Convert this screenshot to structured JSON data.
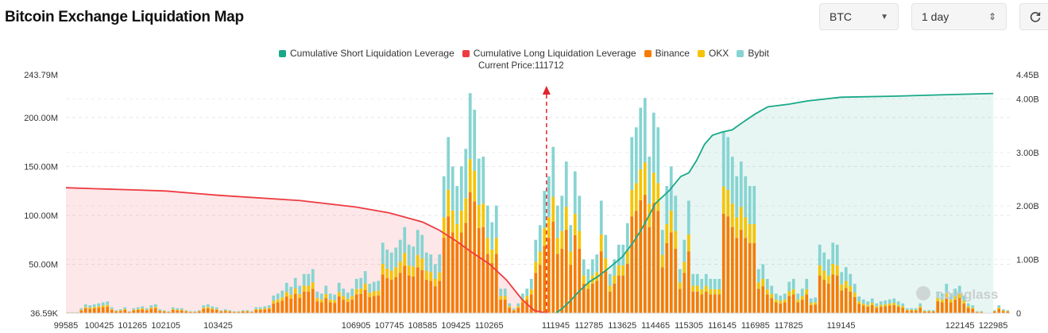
{
  "title": "Bitcoin Exchange Liquidation Map",
  "controls": {
    "symbol": "BTC",
    "range": "1 day"
  },
  "colors": {
    "short": "#19a888",
    "long": "#ee3b42",
    "binance": "#f57c00",
    "okx": "#f5c400",
    "bybit": "#86d4d2"
  },
  "chart_data": {
    "type": "bar",
    "title": "Bitcoin Exchange Liquidation Map",
    "current_price_label": "Current Price:111712",
    "current_price": 111712,
    "legend": [
      "Cumulative Short Liquidation Leverage",
      "Cumulative Long Liquidation Leverage",
      "Binance",
      "OKX",
      "Bybit"
    ],
    "y_left_ticks": [
      "243.79M",
      "200.00M",
      "150.00M",
      "100.00M",
      "50.00M",
      "36.59K"
    ],
    "y_right_ticks": [
      "4.45B",
      "4.00B",
      "3.00B",
      "2.00B",
      "1.00B",
      "0"
    ],
    "x_ticks": [
      "99585",
      "100425",
      "101265",
      "102105",
      "103425",
      "106905",
      "107745",
      "108585",
      "109425",
      "110265",
      "111945",
      "112785",
      "113625",
      "114465",
      "115305",
      "116145",
      "116985",
      "117825",
      "119145",
      "122145",
      "122985"
    ],
    "ylim_left_M": [
      0,
      243.79
    ],
    "ylim_right_B": [
      0,
      4.45
    ],
    "bars_total_M": [
      1,
      1,
      1,
      5,
      9,
      8,
      9,
      10,
      11,
      12,
      6,
      3,
      4,
      6,
      2,
      5,
      6,
      7,
      5,
      8,
      9,
      4,
      3,
      2,
      6,
      5,
      5,
      3,
      2,
      2,
      3,
      8,
      9,
      7,
      6,
      3,
      4,
      3,
      2,
      2,
      3,
      3,
      2,
      6,
      6,
      7,
      8,
      18,
      20,
      23,
      31,
      27,
      36,
      28,
      40,
      40,
      45,
      22,
      20,
      28,
      20,
      19,
      31,
      25,
      21,
      25,
      35,
      36,
      43,
      30,
      32,
      33,
      72,
      65,
      62,
      67,
      75,
      88,
      70,
      68,
      85,
      80,
      62,
      60,
      50,
      60,
      140,
      180,
      150,
      130,
      150,
      168,
      225,
      208,
      158,
      160,
      110,
      93,
      110,
      25,
      25,
      10,
      5,
      10,
      20,
      25,
      35,
      75,
      90,
      125,
      140,
      170,
      110,
      120,
      155,
      90,
      145,
      120,
      55,
      45,
      55,
      60,
      115,
      80,
      40,
      55,
      70,
      70,
      92,
      180,
      190,
      210,
      220,
      160,
      205,
      190,
      85,
      130,
      150,
      120,
      45,
      75,
      115,
      40,
      40,
      35,
      40,
      35,
      35,
      35,
      185,
      180,
      160,
      140,
      155,
      140,
      130,
      130,
      45,
      50,
      35,
      28,
      20,
      18,
      20,
      32,
      35,
      20,
      25,
      35,
      15,
      16,
      70,
      62,
      55,
      72,
      70,
      42,
      47,
      40,
      30,
      17,
      14,
      12,
      15,
      10,
      12,
      13,
      14,
      15,
      12,
      10,
      5,
      5,
      5,
      10,
      3,
      3,
      3,
      22,
      20,
      30,
      20,
      25,
      28,
      18,
      10,
      8,
      2,
      2,
      0,
      0,
      3,
      8,
      4,
      3
    ],
    "short_cumulative_B": [
      [
        111945,
        0
      ],
      [
        112100,
        0.08
      ],
      [
        112300,
        0.22
      ],
      [
        112550,
        0.42
      ],
      [
        112785,
        0.58
      ],
      [
        113000,
        0.68
      ],
      [
        113300,
        0.85
      ],
      [
        113625,
        1.05
      ],
      [
        113900,
        1.32
      ],
      [
        114100,
        1.55
      ],
      [
        114465,
        2.05
      ],
      [
        114800,
        2.28
      ],
      [
        115100,
        2.55
      ],
      [
        115305,
        2.62
      ],
      [
        115500,
        2.85
      ],
      [
        115700,
        3.15
      ],
      [
        115900,
        3.32
      ],
      [
        116145,
        3.38
      ],
      [
        116400,
        3.42
      ],
      [
        116700,
        3.58
      ],
      [
        116985,
        3.72
      ],
      [
        117300,
        3.85
      ],
      [
        117825,
        3.9
      ],
      [
        118300,
        3.96
      ],
      [
        119145,
        4.03
      ],
      [
        120500,
        4.05
      ],
      [
        122000,
        4.08
      ],
      [
        122985,
        4.1
      ]
    ],
    "long_cumulative_B": [
      [
        99585,
        2.34
      ],
      [
        100425,
        2.32
      ],
      [
        101265,
        2.3
      ],
      [
        102105,
        2.28
      ],
      [
        103425,
        2.2
      ],
      [
        105500,
        2.1
      ],
      [
        106905,
        1.98
      ],
      [
        107745,
        1.87
      ],
      [
        108585,
        1.7
      ],
      [
        109000,
        1.55
      ],
      [
        109425,
        1.35
      ],
      [
        109800,
        1.15
      ],
      [
        110265,
        0.92
      ],
      [
        110700,
        0.62
      ],
      [
        111100,
        0.25
      ],
      [
        111400,
        0.05
      ],
      [
        111712,
        0
      ]
    ]
  }
}
